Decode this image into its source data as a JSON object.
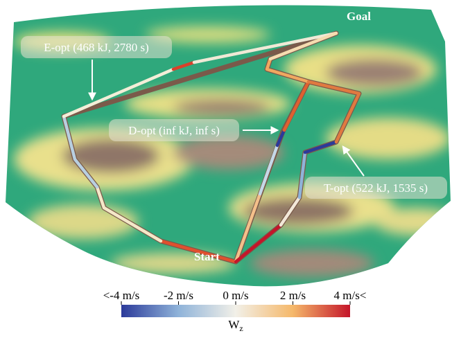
{
  "annotations": {
    "goal": "Goal",
    "start": "Start",
    "e_opt": "E-opt (468 kJ, 2780 s)",
    "d_opt": "D-opt (inf kJ, inf s)",
    "t_opt": "T-opt (522 kJ, 1535 s)"
  },
  "colorbar": {
    "label": "W",
    "label_sub": "z",
    "lim": [
      -4,
      4
    ],
    "ticks": [
      {
        "value": -4,
        "label": "<-4 m/s"
      },
      {
        "value": -2,
        "label": "-2 m/s"
      },
      {
        "value": 0,
        "label": "0 m/s"
      },
      {
        "value": 2,
        "label": "2 m/s"
      },
      {
        "value": 4,
        "label": "4 m/s<"
      }
    ],
    "colors": [
      "#2b3a9a",
      "#8fb3d9",
      "#f2f0e8",
      "#f5b86a",
      "#c4152a"
    ]
  }
}
